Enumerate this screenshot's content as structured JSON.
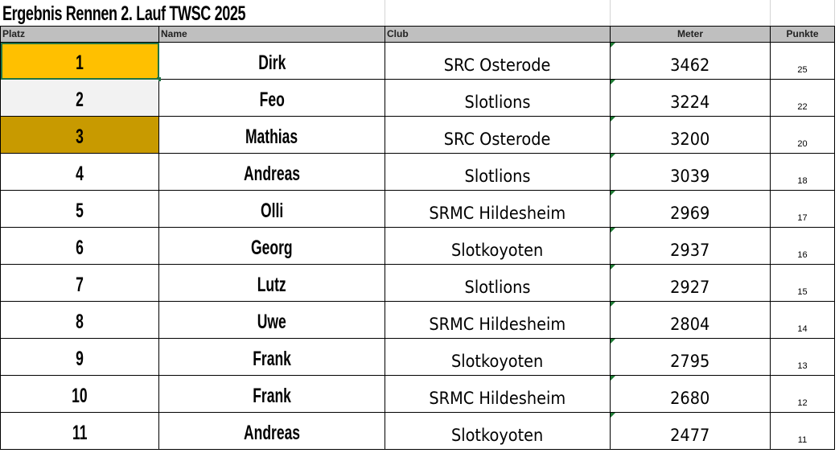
{
  "title": "Ergebnis Rennen 2. Lauf TWSC 2025",
  "columns": {
    "platz": "Platz",
    "name": "Name",
    "club": "Club",
    "meter": "Meter",
    "punkte": "Punkte"
  },
  "colors": {
    "gold": "#ffc000",
    "silver": "#f2f2f2",
    "bronze": "#c89a00",
    "header": "#bfbfbf",
    "selection": "#217346"
  },
  "rows": [
    {
      "platz": "1",
      "name": "Dirk",
      "club": "SRC Osterode",
      "meter": "3462",
      "punkte": "25"
    },
    {
      "platz": "2",
      "name": "Feo",
      "club": "Slotlions",
      "meter": "3224",
      "punkte": "22"
    },
    {
      "platz": "3",
      "name": "Mathias",
      "club": "SRC Osterode",
      "meter": "3200",
      "punkte": "20"
    },
    {
      "platz": "4",
      "name": "Andreas",
      "club": "Slotlions",
      "meter": "3039",
      "punkte": "18"
    },
    {
      "platz": "5",
      "name": "Olli",
      "club": "SRMC Hildesheim",
      "meter": "2969",
      "punkte": "17"
    },
    {
      "platz": "6",
      "name": "Georg",
      "club": "Slotkoyoten",
      "meter": "2937",
      "punkte": "16"
    },
    {
      "platz": "7",
      "name": "Lutz",
      "club": "Slotlions",
      "meter": "2927",
      "punkte": "15"
    },
    {
      "platz": "8",
      "name": "Uwe",
      "club": "SRMC Hildesheim",
      "meter": "2804",
      "punkte": "14"
    },
    {
      "platz": "9",
      "name": "Frank",
      "club": "Slotkoyoten",
      "meter": "2795",
      "punkte": "13"
    },
    {
      "platz": "10",
      "name": "Frank",
      "club": "SRMC Hildesheim",
      "meter": "2680",
      "punkte": "12"
    },
    {
      "platz": "11",
      "name": "Andreas",
      "club": "Slotkoyoten",
      "meter": "2477",
      "punkte": "11"
    }
  ]
}
